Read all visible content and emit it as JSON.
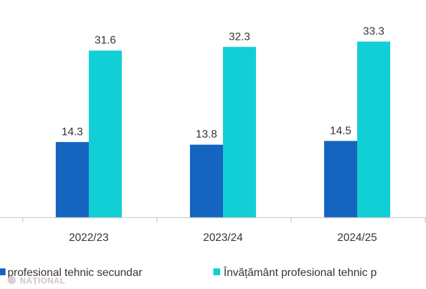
{
  "chart_data": {
    "type": "bar",
    "categories": [
      "2022/23",
      "2023/24",
      "2024/25"
    ],
    "series": [
      {
        "name": "profesional tehnic secundar",
        "color": "#1565c0",
        "values": [
          14.3,
          13.8,
          14.5
        ],
        "labels": [
          "14.3",
          "13.8",
          "14.5"
        ]
      },
      {
        "name": "Învățământ profesional tehnic p",
        "color": "#12cfd6",
        "values": [
          31.6,
          32.3,
          33.3
        ],
        "labels": [
          "31.6",
          "32.3",
          "33.3"
        ]
      }
    ],
    "ylim": [
      0,
      40
    ],
    "grid": false,
    "legend_position": "bottom"
  },
  "watermark": {
    "text": "NAȚIONAL",
    "color": "#c9b7bd"
  }
}
